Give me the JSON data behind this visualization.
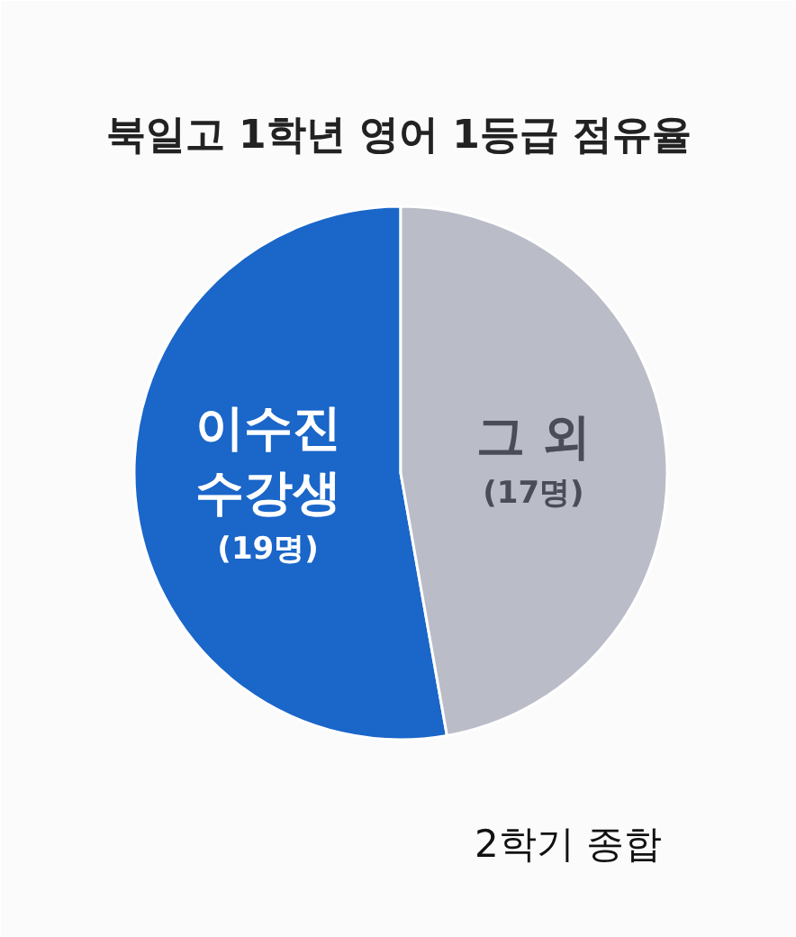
{
  "chart_data": {
    "type": "pie",
    "title": "북일고 1학년 영어 1등급 점유율",
    "categories": [
      "이수진\n수강생",
      "그 외"
    ],
    "values": [
      19,
      17
    ],
    "colors": [
      "#1a66c9",
      "#babdc7"
    ],
    "value_labels": [
      "(19명)",
      "(17명)"
    ],
    "annotations": [
      "2학기 종합"
    ]
  }
}
